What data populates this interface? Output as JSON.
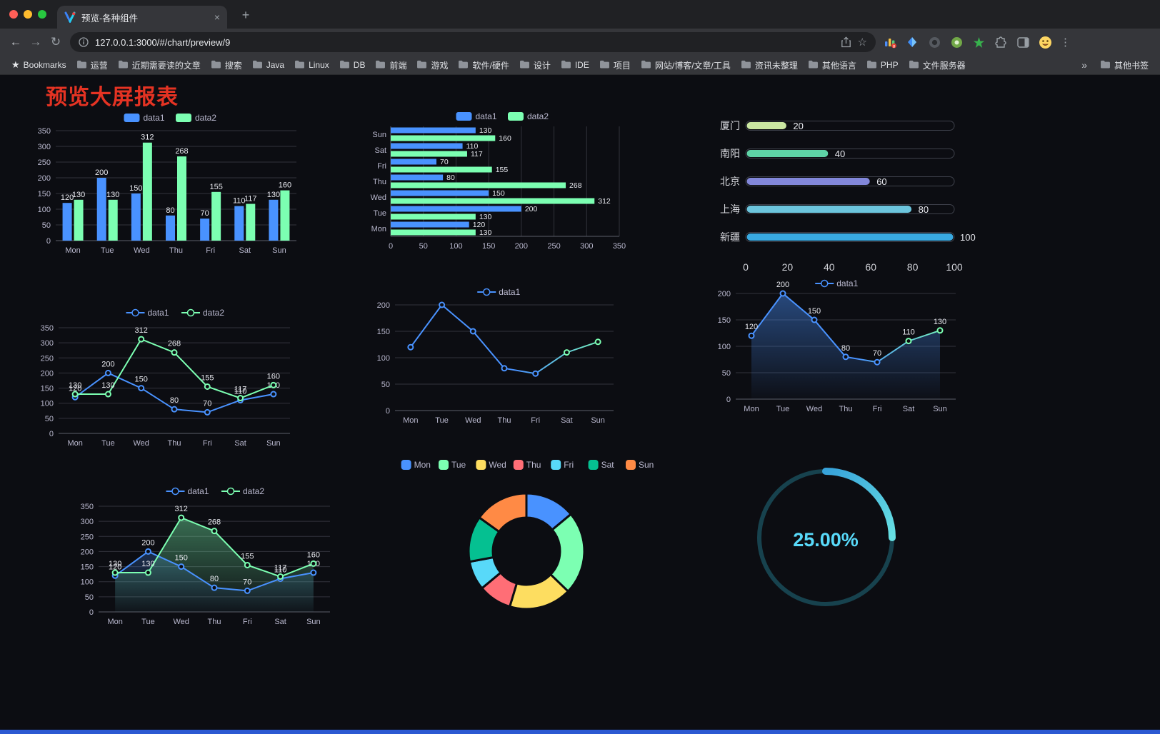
{
  "browser": {
    "traffic_lights": {
      "close": "#ff5f57",
      "minimize": "#febc2e",
      "zoom": "#28c840"
    },
    "tab": {
      "title": "预览-各种组件"
    },
    "icons": {
      "back": "←",
      "forward": "→",
      "reload": "↻",
      "bookmark_star": "☆",
      "bookmarks_label_star": "★",
      "menu": "⋮",
      "close_tab": "×",
      "new_tab": "+"
    },
    "nav": {
      "url": "127.0.0.1:3000/#/chart/preview/9"
    },
    "bookmarks_bar": {
      "label": "Bookmarks",
      "folders": [
        "运营",
        "近期需要读的文章",
        "搜索",
        "Java",
        "Linux",
        "DB",
        "前端",
        "游戏",
        "软件/硬件",
        "设计",
        "IDE",
        "项目",
        "网站/博客/文章/工具",
        "资讯未整理",
        "其他语言",
        "PHP",
        "文件服务器"
      ],
      "overflow": "»",
      "other": "其他书签"
    }
  },
  "page": {
    "title": "预览大屏报表",
    "title_color": "#e53323",
    "background": "#0c0d12"
  },
  "chart_data": [
    {
      "id": "grouped-bar",
      "type": "bar",
      "categories": [
        "Mon",
        "Tue",
        "Wed",
        "Thu",
        "Fri",
        "Sat",
        "Sun"
      ],
      "series": [
        {
          "name": "data1",
          "color": "#4992ff",
          "values": [
            120,
            200,
            150,
            80,
            70,
            110,
            130
          ]
        },
        {
          "name": "data2",
          "color": "#7cffb2",
          "values": [
            130,
            130,
            312,
            268,
            155,
            117,
            160
          ]
        }
      ],
      "ylim": [
        0,
        350
      ],
      "yticks": [
        0,
        50,
        100,
        150,
        200,
        250,
        300,
        350
      ],
      "legend": [
        "data1",
        "data2"
      ],
      "legend_position": "top",
      "labels": true
    },
    {
      "id": "grouped-horizontal-bar",
      "type": "bar-horizontal",
      "categories": [
        "Mon",
        "Tue",
        "Wed",
        "Thu",
        "Fri",
        "Sat",
        "Sun"
      ],
      "row_order_top_to_bottom": [
        "Sun",
        "Sat",
        "Fri",
        "Thu",
        "Wed",
        "Tue",
        "Mon"
      ],
      "series": [
        {
          "name": "data1",
          "color": "#4992ff",
          "values": [
            120,
            200,
            150,
            80,
            70,
            110,
            130
          ]
        },
        {
          "name": "data2",
          "color": "#7cffb2",
          "values": [
            130,
            130,
            312,
            268,
            155,
            117,
            160
          ]
        }
      ],
      "xlim": [
        0,
        350
      ],
      "xticks": [
        0,
        50,
        100,
        150,
        200,
        250,
        300,
        350
      ],
      "legend": [
        "data1",
        "data2"
      ],
      "labels": true
    },
    {
      "id": "progress-bars",
      "type": "progress",
      "max": 100,
      "xticks": [
        0,
        20,
        40,
        60,
        80,
        100
      ],
      "rows": [
        {
          "label": "厦门",
          "value": 20,
          "color": "#cbe7a2"
        },
        {
          "label": "南阳",
          "value": 40,
          "color": "#5ed3a6"
        },
        {
          "label": "北京",
          "value": 60,
          "color": "#8287da"
        },
        {
          "label": "上海",
          "value": 80,
          "color": "#6cc5dd"
        },
        {
          "label": "新疆",
          "value": 100,
          "color": "#39a9e1"
        }
      ]
    },
    {
      "id": "line-dual",
      "type": "line",
      "categories": [
        "Mon",
        "Tue",
        "Wed",
        "Thu",
        "Fri",
        "Sat",
        "Sun"
      ],
      "series": [
        {
          "name": "data1",
          "color": "#4992ff",
          "values": [
            120,
            200,
            150,
            80,
            70,
            110,
            130
          ]
        },
        {
          "name": "data2",
          "color": "#7cffb2",
          "values": [
            130,
            130,
            312,
            268,
            155,
            117,
            160
          ]
        }
      ],
      "ylim": [
        0,
        350
      ],
      "yticks": [
        0,
        50,
        100,
        150,
        200,
        250,
        300,
        350
      ],
      "legend": [
        "data1",
        "data2"
      ],
      "labels": true
    },
    {
      "id": "line-single",
      "type": "line",
      "categories": [
        "Mon",
        "Tue",
        "Wed",
        "Thu",
        "Fri",
        "Sat",
        "Sun"
      ],
      "series": [
        {
          "name": "data1",
          "color": "#4992ff",
          "color_end": "#7cffb2",
          "values": [
            120,
            200,
            150,
            80,
            70,
            110,
            130
          ]
        }
      ],
      "ylim": [
        0,
        200
      ],
      "yticks": [
        0,
        50,
        100,
        150,
        200
      ],
      "legend": [
        "data1"
      ],
      "labels": false
    },
    {
      "id": "area-single",
      "type": "area",
      "categories": [
        "Mon",
        "Tue",
        "Wed",
        "Thu",
        "Fri",
        "Sat",
        "Sun"
      ],
      "series": [
        {
          "name": "data1",
          "color": "#4992ff",
          "color_end": "#7cffb2",
          "fill_opacity": 0.45,
          "values": [
            120,
            200,
            150,
            80,
            70,
            110,
            130
          ]
        }
      ],
      "ylim": [
        0,
        200
      ],
      "yticks": [
        0,
        50,
        100,
        150,
        200
      ],
      "legend": [
        "data1"
      ],
      "labels": true
    },
    {
      "id": "area-dual",
      "type": "area",
      "categories": [
        "Mon",
        "Tue",
        "Wed",
        "Thu",
        "Fri",
        "Sat",
        "Sun"
      ],
      "series": [
        {
          "name": "data1",
          "color": "#4992ff",
          "fill_opacity": 0.25,
          "values": [
            120,
            200,
            150,
            80,
            70,
            110,
            130
          ]
        },
        {
          "name": "data2",
          "color": "#7cffb2",
          "fill_opacity": 0.4,
          "values": [
            130,
            130,
            312,
            268,
            155,
            117,
            160
          ]
        }
      ],
      "ylim": [
        0,
        350
      ],
      "yticks": [
        0,
        50,
        100,
        150,
        200,
        250,
        300,
        350
      ],
      "legend": [
        "data1",
        "data2"
      ],
      "labels": true
    },
    {
      "id": "donut",
      "type": "pie",
      "legend": [
        "Mon",
        "Tue",
        "Wed",
        "Thu",
        "Fri",
        "Sat",
        "Sun"
      ],
      "values": [
        120,
        200,
        150,
        80,
        70,
        110,
        130
      ],
      "colors": [
        "#4992ff",
        "#7cffb2",
        "#fddd60",
        "#ff6e76",
        "#58d9f9",
        "#05c091",
        "#ff8a45"
      ],
      "inner_radius_ratio": 0.58,
      "start_angle": "top",
      "direction": "clockwise"
    },
    {
      "id": "gauge",
      "type": "gauge",
      "value": 25,
      "max": 100,
      "display": "25.00%",
      "arc_color": "#37a2da",
      "arc_color_end": "#67e0e3",
      "track_color": "#17424e",
      "text_color": "#58d9f9"
    }
  ]
}
